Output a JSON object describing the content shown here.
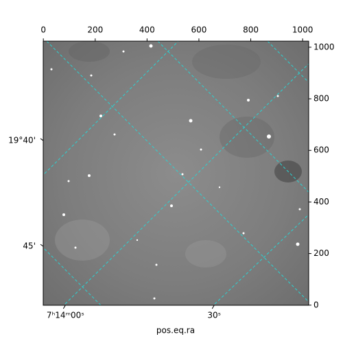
{
  "chart_data": {
    "type": "image",
    "xlabel": "pos.eq.ra",
    "xlim": [
      -0.5,
      1023.5
    ],
    "xticks": [
      0,
      200,
      400,
      600,
      800,
      1000
    ],
    "ylim": [
      -0.5,
      1023.5
    ],
    "yticks": [
      0,
      200,
      400,
      600,
      800,
      1000
    ],
    "ra_ticks": [
      {
        "value": 85,
        "label": "7ʰ14ᵐ00ˢ"
      },
      {
        "value": 659,
        "label": "30ˢ"
      }
    ],
    "dec_ticks": [
      {
        "value": 638,
        "label": "19°40'"
      },
      {
        "value": 228,
        "label": "45'"
      }
    ],
    "grid_color": "#2ad4d4"
  }
}
